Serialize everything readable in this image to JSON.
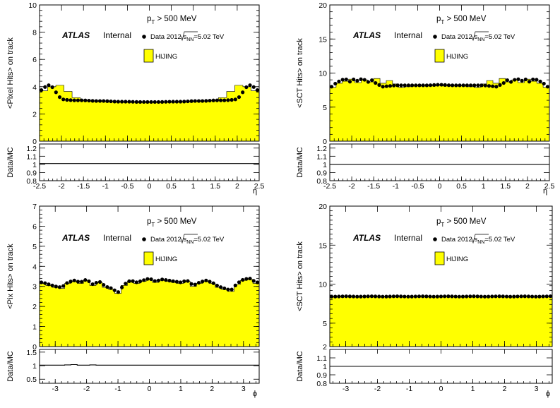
{
  "chart_data": [
    {
      "type": "area",
      "panel": "top-left",
      "ylabel": "<Pixel Hits> on track",
      "xlabel": "η",
      "ratio_ylabel": "Data/MC",
      "xlim": [
        -2.5,
        2.5
      ],
      "ylim": [
        0,
        10
      ],
      "ratio_ylim": [
        0.8,
        1.25
      ],
      "xticks": [
        "-2.5",
        "-2",
        "-1.5",
        "-1",
        "-0.5",
        "0",
        "0.5",
        "1",
        "1.5",
        "2",
        "2.5"
      ],
      "yticks": [
        "0",
        "2",
        "4",
        "6",
        "8",
        "10"
      ],
      "ratio_yticks": [
        "0.8",
        "0.9",
        "1",
        "1.1",
        "1.2"
      ],
      "cut_label_p": "p",
      "cut_label_sub": "T",
      "cut_label_rest": " > 500 MeV",
      "atlas": "ATLAS",
      "internal": "Internal",
      "legend_data_prefix": "Data 2012 ",
      "legend_data_sqrt": "s",
      "legend_data_sub": "NN",
      "legend_data_suffix": "=5.02 TeV",
      "legend_mc": "HIJING",
      "x": [
        -2.45,
        -2.35,
        -2.25,
        -2.15,
        -2.05,
        -1.95,
        -1.75,
        -1.5,
        -1.25,
        -1.0,
        -0.75,
        -0.5,
        -0.25,
        0.0,
        0.25,
        0.5,
        0.75,
        1.0,
        1.25,
        1.5,
        1.75,
        1.95,
        2.05,
        2.15,
        2.25,
        2.35,
        2.45
      ],
      "data_values": [
        3.75,
        4.05,
        4.15,
        3.7,
        3.25,
        3.05,
        3.0,
        3.0,
        2.95,
        2.95,
        2.9,
        2.9,
        2.88,
        2.88,
        2.88,
        2.9,
        2.9,
        2.95,
        2.95,
        3.0,
        3.0,
        3.05,
        3.25,
        3.7,
        4.15,
        4.05,
        3.75
      ],
      "mc_values": [
        3.7,
        4.0,
        4.1,
        3.65,
        3.2,
        3.0,
        2.95,
        2.95,
        2.9,
        2.9,
        2.85,
        2.85,
        2.83,
        2.83,
        2.83,
        2.85,
        2.85,
        2.9,
        2.9,
        2.95,
        2.95,
        3.0,
        3.2,
        3.65,
        4.1,
        4.0,
        3.7
      ],
      "ratio_values": [
        1.01,
        1.01,
        1.01,
        1.01,
        1.01,
        1.01,
        1.01,
        1.01,
        1.01,
        1.01,
        1.01,
        1.01,
        1.01,
        1.01,
        1.01,
        1.01,
        1.01,
        1.01,
        1.01,
        1.01,
        1.01,
        1.01,
        1.01,
        1.01,
        1.01,
        1.01,
        1.01
      ]
    },
    {
      "type": "area",
      "panel": "top-right",
      "ylabel": "<SCT Hits> on track",
      "xlabel": "η",
      "ratio_ylabel": "Data/MC",
      "xlim": [
        -2.5,
        2.5
      ],
      "ylim": [
        0,
        20
      ],
      "ratio_ylim": [
        0.8,
        1.25
      ],
      "xticks": [
        "-2.5",
        "-2",
        "-1.5",
        "-1",
        "-0.5",
        "0",
        "0.5",
        "1",
        "1.5",
        "2",
        "2.5"
      ],
      "yticks": [
        "0",
        "5",
        "10",
        "15",
        "20"
      ],
      "ratio_yticks": [
        "0.8",
        "0.9",
        "1",
        "1.1",
        "1.2"
      ],
      "cut_label_p": "p",
      "cut_label_sub": "T",
      "cut_label_rest": " > 500 MeV",
      "atlas": "ATLAS",
      "internal": "Internal",
      "legend_data_prefix": "Data 2012 ",
      "legend_data_sqrt": "s",
      "legend_data_sub": "NN",
      "legend_data_suffix": "=5.02 TeV",
      "legend_mc": "HIJING",
      "x": [
        -2.45,
        -2.35,
        -2.25,
        -2.15,
        -2.05,
        -1.95,
        -1.85,
        -1.75,
        -1.65,
        -1.55,
        -1.45,
        -1.3,
        -1.15,
        -1.0,
        -0.75,
        -0.5,
        -0.25,
        0.0,
        0.25,
        0.5,
        0.75,
        1.0,
        1.15,
        1.3,
        1.45,
        1.55,
        1.65,
        1.75,
        1.85,
        1.95,
        2.05,
        2.15,
        2.25,
        2.35,
        2.45
      ],
      "data_values": [
        8.0,
        8.6,
        8.9,
        9.2,
        8.7,
        9.1,
        8.8,
        9.3,
        8.6,
        9.0,
        8.5,
        8.0,
        8.1,
        8.2,
        8.2,
        8.2,
        8.2,
        8.3,
        8.2,
        8.2,
        8.2,
        8.2,
        8.1,
        8.0,
        8.5,
        9.0,
        8.6,
        9.3,
        8.8,
        9.1,
        8.7,
        9.2,
        8.9,
        8.6,
        8.0
      ],
      "mc_values": [
        7.9,
        8.5,
        8.8,
        9.1,
        8.6,
        9.0,
        8.7,
        9.2,
        8.5,
        8.9,
        8.4,
        7.9,
        8.0,
        8.1,
        8.1,
        8.1,
        8.1,
        8.2,
        8.1,
        8.1,
        8.1,
        8.1,
        8.0,
        7.9,
        8.4,
        8.9,
        8.5,
        9.2,
        8.7,
        9.0,
        8.6,
        9.1,
        8.8,
        8.5,
        7.9
      ],
      "ratio_values": [
        1.0,
        1.0,
        1.0,
        1.0,
        1.0,
        1.0,
        1.0,
        1.0,
        1.0,
        1.0,
        1.0,
        1.0,
        1.0,
        1.0,
        1.0,
        1.0,
        1.0,
        1.0,
        1.0,
        1.0,
        1.0,
        1.0,
        1.0,
        1.0,
        1.0,
        1.0,
        1.0,
        1.0,
        1.0,
        1.0,
        1.0,
        1.0,
        1.0,
        1.0,
        1.0
      ]
    },
    {
      "type": "area",
      "panel": "bottom-left",
      "ylabel": "<Pix Hits> on track",
      "xlabel": "ϕ",
      "ratio_ylabel": "Data/MC",
      "xlim": [
        -3.5,
        3.5
      ],
      "ylim": [
        0,
        7
      ],
      "ratio_ylim": [
        0.35,
        1.6
      ],
      "xticks": [
        "-3",
        "-2",
        "-1",
        "0",
        "1",
        "2",
        "3"
      ],
      "yticks": [
        "0",
        "1",
        "2",
        "3",
        "4",
        "5",
        "6",
        "7"
      ],
      "ratio_yticks": [
        "0.5",
        "1",
        "1.5"
      ],
      "cut_label_p": "p",
      "cut_label_sub": "T",
      "cut_label_rest": " > 500 MeV",
      "atlas": "ATLAS",
      "internal": "Internal",
      "legend_data_prefix": "Data 2012 ",
      "legend_data_sqrt": "s",
      "legend_data_sub": "NN",
      "legend_data_suffix": "=5.02 TeV",
      "legend_mc": "HIJING",
      "x": [
        -3.4,
        -3.2,
        -3.0,
        -2.8,
        -2.6,
        -2.4,
        -2.2,
        -2.0,
        -1.8,
        -1.6,
        -1.4,
        -1.2,
        -1.0,
        -0.8,
        -0.6,
        -0.4,
        -0.2,
        0.0,
        0.2,
        0.4,
        0.6,
        0.8,
        1.0,
        1.2,
        1.4,
        1.6,
        1.8,
        2.0,
        2.2,
        2.4,
        2.6,
        2.8,
        3.0,
        3.2,
        3.4
      ],
      "data_values": [
        3.2,
        3.1,
        3.0,
        2.95,
        3.2,
        3.3,
        3.2,
        3.35,
        3.1,
        3.25,
        3.0,
        2.9,
        2.7,
        3.1,
        3.3,
        3.2,
        3.3,
        3.4,
        3.25,
        3.35,
        3.3,
        3.25,
        3.2,
        3.3,
        3.05,
        3.2,
        3.3,
        3.2,
        3.0,
        2.9,
        2.8,
        3.15,
        3.35,
        3.4,
        3.2
      ],
      "mc_values": [
        3.15,
        3.05,
        2.95,
        2.9,
        3.15,
        3.25,
        3.15,
        3.3,
        3.05,
        3.2,
        2.95,
        2.85,
        2.65,
        3.05,
        3.25,
        3.15,
        3.25,
        3.35,
        3.2,
        3.3,
        3.25,
        3.2,
        3.15,
        3.25,
        3.0,
        3.15,
        3.25,
        3.15,
        2.95,
        2.85,
        2.75,
        3.1,
        3.3,
        3.35,
        3.15
      ],
      "ratio_values": [
        1.02,
        1.02,
        1.02,
        1.02,
        1.03,
        1.04,
        1.02,
        1.02,
        1.03,
        1.02,
        1.02,
        1.02,
        1.02,
        1.02,
        1.02,
        1.02,
        1.02,
        1.02,
        1.02,
        1.02,
        1.02,
        1.02,
        1.02,
        1.02,
        1.02,
        1.02,
        1.02,
        1.02,
        1.02,
        1.02,
        1.02,
        1.02,
        1.02,
        1.02,
        1.02
      ]
    },
    {
      "type": "area",
      "panel": "bottom-right",
      "ylabel": "<SCT Hits> on track",
      "xlabel": "ϕ",
      "ratio_ylabel": "Data/MC",
      "xlim": [
        -3.5,
        3.5
      ],
      "ylim": [
        0,
        20
      ],
      "ylim_display_min": 2,
      "ratio_ylim": [
        0.8,
        1.2
      ],
      "xticks": [
        "-3",
        "-2",
        "-1",
        "0",
        "1",
        "2",
        "3"
      ],
      "yticks": [
        "2",
        "5",
        "10",
        "15",
        "20"
      ],
      "ratio_yticks": [
        "0.8",
        "0.9",
        "1",
        "1.1"
      ],
      "cut_label_p": "p",
      "cut_label_sub": "T",
      "cut_label_rest": " > 500 MeV",
      "atlas": "ATLAS",
      "internal": "Internal",
      "legend_data_prefix": "Data 2012 ",
      "legend_data_sqrt": "s",
      "legend_data_sub": "NN",
      "legend_data_suffix": "=5.02 TeV",
      "legend_mc": "HIJING",
      "x": [
        -3.4,
        -3.0,
        -2.6,
        -2.2,
        -1.8,
        -1.4,
        -1.0,
        -0.6,
        -0.2,
        0.2,
        0.6,
        1.0,
        1.4,
        1.8,
        2.2,
        2.6,
        3.0,
        3.4
      ],
      "data_values": [
        8.4,
        8.45,
        8.4,
        8.45,
        8.4,
        8.45,
        8.4,
        8.45,
        8.4,
        8.45,
        8.4,
        8.45,
        8.4,
        8.45,
        8.4,
        8.45,
        8.4,
        8.45
      ],
      "mc_values": [
        8.4,
        8.4,
        8.4,
        8.4,
        8.4,
        8.4,
        8.4,
        8.4,
        8.4,
        8.4,
        8.4,
        8.4,
        8.4,
        8.4,
        8.4,
        8.4,
        8.4,
        8.4
      ],
      "ratio_values": [
        1.0,
        1.0,
        1.0,
        1.0,
        1.0,
        1.0,
        1.0,
        1.0,
        1.0,
        1.0,
        1.0,
        1.0,
        1.0,
        1.0,
        1.0,
        1.0,
        1.0,
        1.0
      ]
    }
  ]
}
